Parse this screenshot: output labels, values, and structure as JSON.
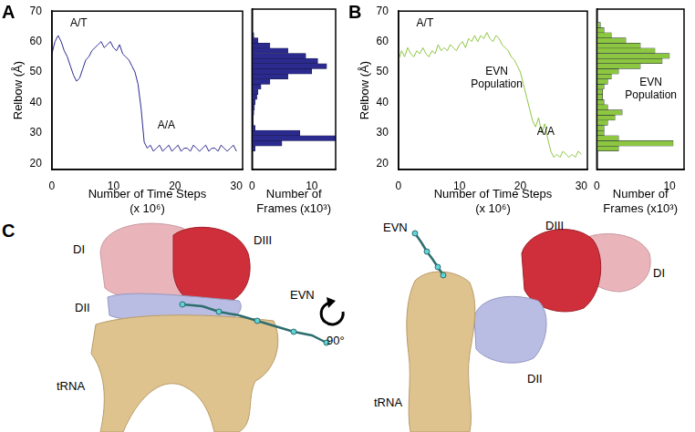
{
  "panel_labels": [
    "A",
    "B",
    "C"
  ],
  "chart_data": [
    {
      "type": "line",
      "xlabel": [
        "Number of Time Steps",
        "(x 10⁶)"
      ],
      "ylabel": "Relbow (Å)",
      "annotations": [
        "A/T",
        "A/A"
      ],
      "x": [
        0,
        0.5,
        1,
        1.5,
        2,
        2.5,
        3,
        3.5,
        4,
        4.5,
        5,
        5.5,
        6,
        6.5,
        7,
        7.5,
        8,
        8.5,
        9,
        9.5,
        10,
        10.5,
        11,
        11.5,
        12,
        12.5,
        13,
        13.5,
        14,
        14.5,
        15,
        15.5,
        16,
        16.5,
        17,
        17.5,
        18,
        18.5,
        19,
        19.5,
        20,
        20.5,
        21,
        21.5,
        22,
        22.5,
        23,
        23.5,
        24,
        24.5,
        25,
        25.5,
        26,
        26.5,
        27,
        27.5,
        28,
        28.5,
        29,
        29.5,
        30
      ],
      "values": [
        56,
        60,
        62,
        60,
        57,
        55,
        52,
        49,
        47,
        48,
        51,
        54,
        55,
        57,
        58,
        59,
        60,
        58,
        59,
        60,
        58,
        57,
        59,
        56,
        55,
        54,
        52,
        50,
        46,
        38,
        27,
        25,
        26,
        24,
        25,
        26,
        24,
        25,
        26,
        24,
        25,
        26,
        24,
        25,
        25,
        24,
        26,
        25,
        24,
        25,
        26,
        24,
        25,
        25,
        24,
        26,
        25,
        24,
        25,
        26,
        24
      ],
      "color": "#2b2a8e",
      "xlim": [
        0,
        31
      ],
      "xticks": [
        0,
        10,
        20,
        30
      ],
      "ylim": [
        18,
        70
      ],
      "yticks": [
        20,
        30,
        40,
        50,
        60,
        70
      ],
      "grid": false
    },
    {
      "type": "histogram",
      "orientation": "horizontal",
      "xlabel": [
        "Number of",
        "Frames (x10³)"
      ],
      "bins": [
        20,
        22,
        24,
        26,
        28,
        30,
        32,
        34,
        36,
        38,
        40,
        42,
        44,
        46,
        48,
        50,
        52,
        54,
        56,
        58,
        60,
        62,
        64,
        66,
        68,
        70
      ],
      "counts": [
        0.5,
        5,
        14,
        8,
        0.5,
        0.2,
        0.2,
        0.3,
        0.4,
        0.5,
        0.8,
        1,
        1.5,
        3,
        6,
        10,
        12.5,
        11,
        9,
        6,
        3,
        1,
        0.3,
        0,
        0
      ],
      "color": "#2b2a8e",
      "xlim": [
        0,
        14
      ],
      "xticks": [
        0,
        10
      ],
      "ylim": [
        18,
        70
      ],
      "yticks": [
        20,
        30,
        40,
        50,
        60,
        70
      ],
      "tick_labels": "x",
      "grid": false
    },
    {
      "type": "line",
      "xlabel": [
        "Number of Time Steps",
        "(x 10⁶)"
      ],
      "ylabel": "Relbow (Å)",
      "annotations": [
        "A/T",
        "EVN Population",
        "A/A"
      ],
      "x": [
        0,
        0.5,
        1,
        1.5,
        2,
        2.5,
        3,
        3.5,
        4,
        4.5,
        5,
        5.5,
        6,
        6.5,
        7,
        7.5,
        8,
        8.5,
        9,
        9.5,
        10,
        10.5,
        11,
        11.5,
        12,
        12.5,
        13,
        13.5,
        14,
        14.5,
        15,
        15.5,
        16,
        16.5,
        17,
        17.5,
        18,
        18.5,
        19,
        19.5,
        20,
        20.5,
        21,
        21.5,
        22,
        22.5,
        23,
        23.5,
        24,
        24.5,
        25,
        25.5,
        26,
        26.5,
        27,
        27.5,
        28,
        28.5,
        29,
        29.5,
        30
      ],
      "values": [
        54,
        57,
        55,
        58,
        56,
        55,
        57,
        56,
        58,
        56,
        55,
        57,
        56,
        59,
        57,
        58,
        57,
        59,
        58,
        57,
        59,
        60,
        58,
        61,
        60,
        62,
        60,
        62,
        61,
        63,
        61,
        60,
        62,
        61,
        59,
        58,
        57,
        55,
        54,
        52,
        50,
        46,
        42,
        38,
        34,
        32,
        35,
        30,
        33,
        28,
        24,
        22,
        23,
        22,
        24,
        23,
        22,
        23,
        22,
        24,
        23
      ],
      "color": "#8dc641",
      "xlim": [
        0,
        31
      ],
      "xticks": [
        0,
        10,
        20,
        30
      ],
      "ylim": [
        18,
        70
      ],
      "yticks": [
        20,
        30,
        40,
        50,
        60,
        70
      ],
      "grid": false
    },
    {
      "type": "histogram",
      "orientation": "horizontal",
      "xlabel": [
        "Number of",
        "Frames (x10³)"
      ],
      "annotations": [
        "EVN Population"
      ],
      "bins": [
        20,
        22,
        24,
        26,
        28,
        30,
        32,
        34,
        36,
        38,
        40,
        42,
        44,
        46,
        48,
        50,
        52,
        54,
        56,
        58,
        60,
        62,
        64,
        66,
        68,
        70
      ],
      "counts": [
        3,
        10.5,
        3,
        1,
        1,
        1.5,
        2.5,
        3.5,
        1.5,
        1,
        0.8,
        0.8,
        1,
        1.5,
        2,
        3,
        6,
        9,
        10,
        8,
        6,
        4,
        2,
        1,
        0.5
      ],
      "color": "#8dc641",
      "xlim": [
        0,
        12
      ],
      "xticks": [
        0,
        10
      ],
      "ylim": [
        18,
        70
      ],
      "yticks": [
        20,
        30,
        40,
        50,
        60,
        70
      ],
      "tick_labels": "x",
      "grid": false
    }
  ],
  "panel_c": {
    "views": [
      [
        "DI",
        "DIII",
        "DII",
        "EVN",
        "tRNA"
      ],
      [
        "EVN",
        "DIII",
        "DI",
        "DII",
        "tRNA"
      ]
    ],
    "rotation": "90°"
  }
}
